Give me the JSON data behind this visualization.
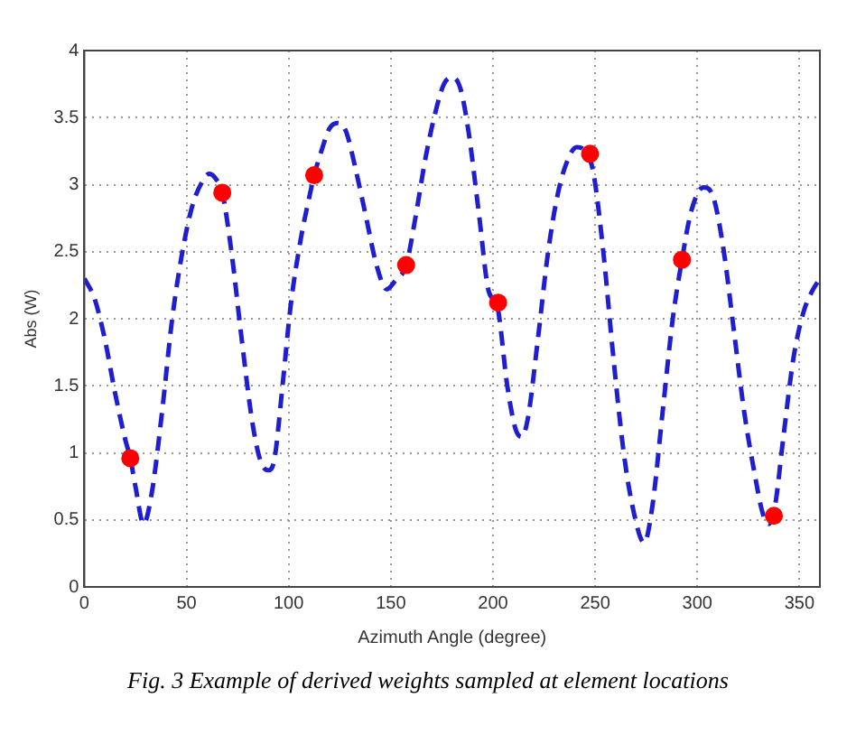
{
  "chart_data": {
    "type": "line",
    "xlabel": "Azimuth Angle (degree)",
    "ylabel": "Abs (W)",
    "annotations": [
      "Fig. 3 Example of derived weights sampled at element locations"
    ],
    "xlim": [
      0,
      360
    ],
    "xticks": [
      0,
      50,
      100,
      150,
      200,
      250,
      300,
      350
    ],
    "ylim": [
      0,
      4
    ],
    "yticks": [
      0,
      0.5,
      {
        "value": 1,
        "label": "1"
      },
      1.5,
      {
        "value": 2,
        "label": "2"
      },
      2.5,
      {
        "value": 3,
        "label": "3"
      },
      3.5,
      {
        "value": 4,
        "label": "4"
      }
    ],
    "grid": true,
    "legend": false,
    "series": [
      {
        "color": "#1f1fd0",
        "line_style": "dashed",
        "marker": "none",
        "x": [
          0,
          5,
          10,
          15,
          20,
          22.5,
          25,
          29,
          33,
          38,
          43,
          48,
          53,
          58,
          61,
          64,
          67.5,
          72,
          77,
          82,
          86,
          90,
          93,
          97,
          101,
          106,
          110,
          112.5,
          116,
          120,
          124,
          128,
          133,
          138,
          143,
          148,
          152,
          157.5,
          162,
          167,
          172,
          176,
          180,
          184,
          188,
          193,
          198,
          202,
          207,
          211,
          214,
          217,
          222,
          227,
          232,
          237,
          241,
          245,
          249,
          254,
          259,
          264,
          269,
          274,
          278,
          283,
          288,
          292.5,
          297,
          303,
          308,
          313,
          318,
          323,
          328,
          332,
          335,
          338,
          342,
          347,
          352,
          356,
          360
        ],
        "values": [
          2.3,
          2.15,
          1.85,
          1.45,
          1.1,
          0.96,
          0.75,
          0.47,
          0.7,
          1.3,
          2.0,
          2.5,
          2.85,
          3.03,
          3.08,
          3.05,
          2.94,
          2.5,
          1.85,
          1.25,
          0.95,
          0.87,
          0.95,
          1.5,
          2.1,
          2.6,
          2.9,
          3.07,
          3.25,
          3.42,
          3.46,
          3.4,
          3.1,
          2.75,
          2.4,
          2.22,
          2.28,
          2.4,
          2.75,
          3.2,
          3.55,
          3.75,
          3.8,
          3.72,
          3.4,
          2.8,
          2.2,
          2.1,
          1.5,
          1.18,
          1.12,
          1.25,
          1.85,
          2.5,
          2.95,
          3.2,
          3.28,
          3.25,
          3.1,
          2.5,
          1.7,
          1.0,
          0.55,
          0.33,
          0.6,
          1.3,
          2.0,
          2.44,
          2.8,
          2.98,
          2.9,
          2.5,
          1.9,
          1.3,
          0.85,
          0.55,
          0.47,
          0.6,
          1.1,
          1.7,
          2.05,
          2.2,
          2.3
        ]
      },
      {
        "type": "scatter",
        "color": "#ff0000",
        "marker": "circle",
        "x": [
          22.5,
          67.5,
          112.5,
          157.5,
          202.5,
          247.5,
          292.5,
          337.5
        ],
        "values": [
          0.96,
          2.94,
          3.07,
          2.4,
          2.12,
          3.23,
          2.44,
          0.53
        ]
      }
    ]
  }
}
